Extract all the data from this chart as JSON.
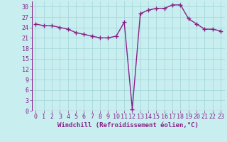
{
  "x": [
    0,
    1,
    2,
    3,
    4,
    5,
    6,
    7,
    8,
    9,
    10,
    11,
    12,
    13,
    14,
    15,
    16,
    17,
    18,
    19,
    20,
    21,
    22,
    23
  ],
  "y": [
    25.0,
    24.5,
    24.5,
    24.0,
    23.5,
    22.5,
    22.0,
    21.5,
    21.0,
    21.0,
    21.5,
    25.5,
    0.5,
    28.0,
    29.0,
    29.5,
    29.5,
    30.5,
    30.5,
    26.5,
    25.0,
    23.5,
    23.5,
    23.0
  ],
  "line_color": "#882288",
  "marker": "+",
  "marker_size": 4,
  "xlabel": "Windchill (Refroidissement éolien,°C)",
  "ylabel_ticks": [
    0,
    3,
    6,
    9,
    12,
    15,
    18,
    21,
    24,
    27,
    30
  ],
  "xtick_labels": [
    "0",
    "1",
    "2",
    "3",
    "4",
    "5",
    "6",
    "7",
    "8",
    "9",
    "10",
    "11",
    "12",
    "13",
    "14",
    "15",
    "16",
    "17",
    "18",
    "19",
    "20",
    "21",
    "22",
    "23"
  ],
  "ylim": [
    0,
    31.5
  ],
  "xlim": [
    -0.5,
    23.5
  ],
  "bg_color": "#c8eef0",
  "grid_color": "#a0d4d8",
  "xlabel_fontsize": 6.5,
  "tick_fontsize": 6.0,
  "linewidth": 1.0
}
